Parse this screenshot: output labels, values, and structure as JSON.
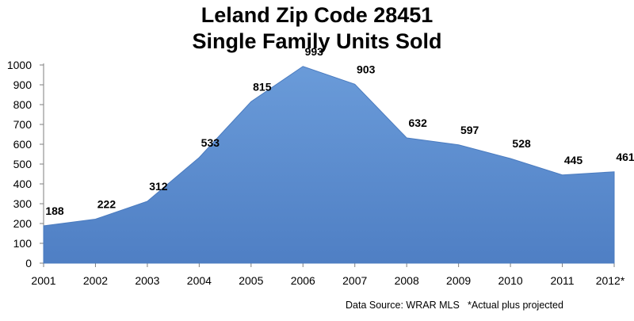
{
  "chart_data": {
    "type": "area",
    "title_line1": "Leland Zip Code 28451",
    "title_line2": "Single Family Units Sold",
    "categories": [
      "2001",
      "2002",
      "2003",
      "2004",
      "2005",
      "2006",
      "2007",
      "2008",
      "2009",
      "2010",
      "2011",
      "2012*"
    ],
    "values": [
      188,
      222,
      312,
      533,
      815,
      993,
      903,
      632,
      597,
      528,
      445,
      461
    ],
    "data_labels": [
      "188",
      "222",
      "312",
      "533",
      "815",
      "993",
      "903",
      "632",
      "597",
      "528",
      "445",
      "461"
    ],
    "y_ticks": [
      "0",
      "100",
      "200",
      "300",
      "400",
      "500",
      "600",
      "700",
      "800",
      "900",
      "1000"
    ],
    "ylim": [
      0,
      1000
    ],
    "xlabel": "",
    "ylabel": "",
    "area_color": "#5b8ccf",
    "grid": false,
    "legend": "none"
  },
  "footer": {
    "source": "Data Source: WRAR MLS",
    "note": "*Actual plus projected"
  }
}
